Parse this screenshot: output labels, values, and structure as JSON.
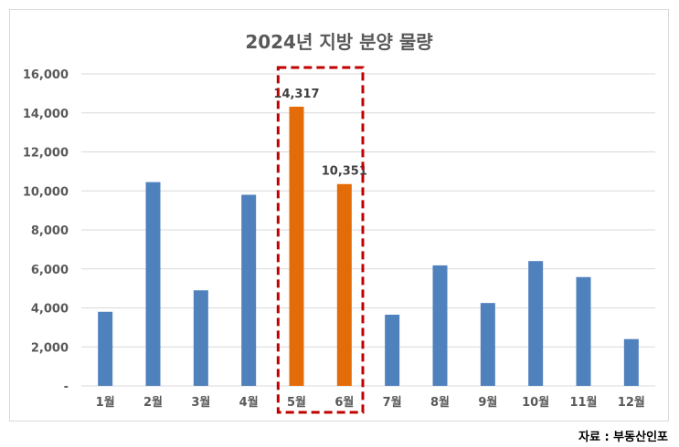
{
  "chart_data": {
    "type": "bar",
    "title": "2024년 지방 분양 물량",
    "categories": [
      "1월",
      "2월",
      "3월",
      "4월",
      "5월",
      "6월",
      "7월",
      "8월",
      "9월",
      "10월",
      "11월",
      "12월"
    ],
    "values": [
      3800,
      10450,
      4900,
      9800,
      14317,
      10351,
      3650,
      6180,
      4250,
      6400,
      5580,
      2400
    ],
    "highlight": [
      4,
      5
    ],
    "data_labels": [
      {
        "index": 4,
        "text": "14,317"
      },
      {
        "index": 5,
        "text": "10,351"
      }
    ],
    "y_ticks": [
      "-",
      "2,000",
      "4,000",
      "6,000",
      "8,000",
      "10,000",
      "12,000",
      "14,000",
      "16,000"
    ],
    "ylim": [
      0,
      16000
    ],
    "grid": true,
    "legend": "none",
    "colors": {
      "default": "#4f81bd",
      "highlight": "#e36c09",
      "highlight_box": "#c00000",
      "grid": "#d9d9d9"
    }
  },
  "source": "자료 : 부동산인포"
}
